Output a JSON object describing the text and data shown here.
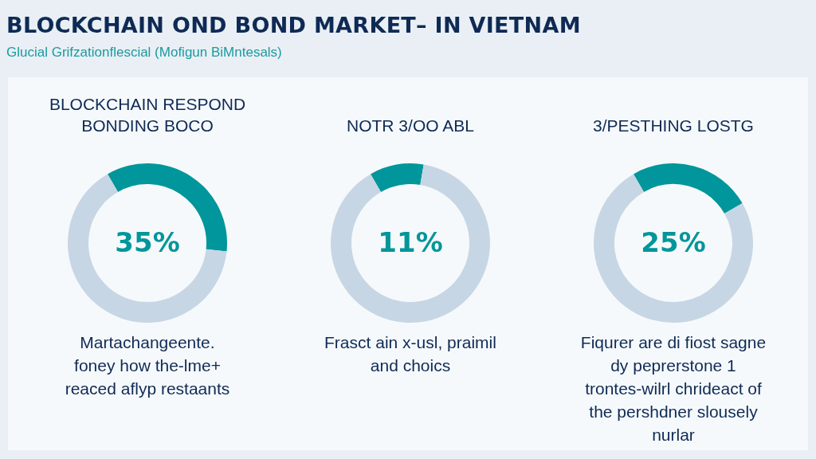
{
  "chart_data": [
    {
      "type": "other",
      "title": "BLOCKCHAIN OND BOND MARKET– IN VIETNAM",
      "subtitle": "Glucial Grifzationflescial (Mofigun BiMntesals)"
    },
    {
      "type": "donut",
      "title": "BLOCKCHAIN RESPOND\nBONDING BOCO",
      "categories": [
        null,
        null
      ],
      "values": [
        35,
        65
      ],
      "colors": [
        "#00969b",
        "#c6d6e4"
      ],
      "value_labels": [
        "35%",
        null
      ],
      "annotations": [
        "Martachangeente.\nfoney how the-lme+\nreaced aflyp restaants"
      ]
    },
    {
      "type": "donut",
      "title": "NOTR 3/OO ABL",
      "categories": [
        null,
        null
      ],
      "values": [
        11,
        89
      ],
      "colors": [
        "#00969b",
        "#c6d6e4"
      ],
      "value_labels": [
        "11%",
        null
      ],
      "annotations": [
        "Frasct ain x-usl, praimil\nand choics"
      ]
    },
    {
      "type": "donut",
      "title": "3/PESTHING LOSTG",
      "categories": [
        null,
        null
      ],
      "values": [
        25,
        75
      ],
      "colors": [
        "#00969b",
        "#c6d6e4"
      ],
      "value_labels": [
        "25%",
        null
      ],
      "annotations": [
        "Fiqurer are di fiost sagne\ndy peprerstone 1\ntrontes-wilrl chrideact of\nthe pershdner slousely\nnurlar"
      ]
    }
  ]
}
